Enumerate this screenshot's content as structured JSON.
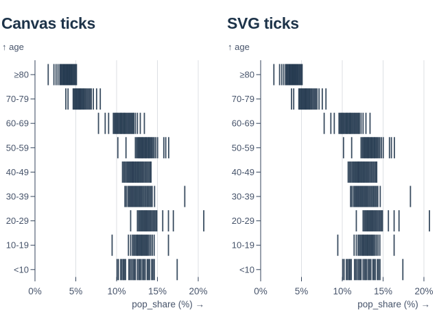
{
  "colors": {
    "tick": "#24384f",
    "title": "#1d3349",
    "label": "#46536a",
    "axis": "#31425a",
    "grid": "#dcdfe3"
  },
  "chart_data": {
    "type": "tick-strip",
    "note": "Two side-by-side panels rendering the identical tick dataset (canvas vs SVG renderer comparison)",
    "panels": [
      {
        "title": "Canvas ticks"
      },
      {
        "title": "SVG ticks"
      }
    ],
    "ylabel": "↑ age",
    "xlabel": "pop_share (%) →",
    "x_ticks_pct": [
      0,
      5,
      10,
      15,
      20
    ],
    "x_tick_labels": [
      "0%",
      "5%",
      "10%",
      "15%",
      "20%"
    ],
    "xlim": [
      0,
      21
    ],
    "grid": "vertical light-gray gridlines at 5% steps",
    "categories": [
      "≥80",
      "70-79",
      "60-69",
      "50-59",
      "40-49",
      "30-39",
      "20-29",
      "10-19",
      "<10"
    ],
    "series": [
      {
        "age": "≥80",
        "pop_share_ticks": [
          1.62,
          2.32,
          2.58,
          2.82,
          3.05,
          3.12,
          3.24,
          3.3,
          3.42,
          3.5,
          3.55,
          3.63,
          3.72,
          3.8,
          3.88,
          3.95,
          4.02,
          4.1,
          4.18,
          4.25,
          4.33,
          4.42,
          4.5,
          4.58,
          4.68,
          4.78,
          4.88,
          5.0,
          5.08
        ]
      },
      {
        "age": "70-79",
        "pop_share_ticks": [
          3.78,
          4.05,
          4.68,
          4.78,
          4.9,
          5.0,
          5.08,
          5.18,
          5.28,
          5.38,
          5.48,
          5.55,
          5.65,
          5.75,
          5.85,
          5.95,
          6.05,
          6.18,
          6.3,
          6.45,
          6.6,
          6.75,
          6.9,
          7.15,
          7.55,
          8.0
        ]
      },
      {
        "age": "60-69",
        "pop_share_ticks": [
          7.78,
          8.6,
          9.02,
          9.6,
          9.72,
          9.85,
          9.95,
          10.05,
          10.15,
          10.28,
          10.4,
          10.5,
          10.6,
          10.7,
          10.82,
          10.92,
          11.02,
          11.12,
          11.25,
          11.38,
          11.5,
          11.62,
          11.75,
          11.88,
          12.0,
          12.1,
          12.3,
          12.55,
          12.9,
          13.4
        ]
      },
      {
        "age": "50-59",
        "pop_share_ticks": [
          10.15,
          11.15,
          12.3,
          12.45,
          12.58,
          12.7,
          12.8,
          12.9,
          13.0,
          13.1,
          13.2,
          13.3,
          13.42,
          13.52,
          13.62,
          13.72,
          13.85,
          13.95,
          14.05,
          14.18,
          14.3,
          14.45,
          14.6,
          14.8,
          15.02,
          15.78,
          16.02,
          16.38
        ]
      },
      {
        "age": "40-49",
        "pop_share_ticks": [
          10.72,
          10.88,
          11.02,
          11.18,
          11.32,
          11.45,
          11.58,
          11.7,
          11.82,
          11.92,
          12.02,
          12.12,
          12.25,
          12.35,
          12.48,
          12.58,
          12.7,
          12.82,
          12.95,
          13.08,
          13.2,
          13.35,
          13.5,
          13.65,
          13.8,
          13.95,
          14.1,
          14.22
        ]
      },
      {
        "age": "30-39",
        "pop_share_ticks": [
          11.02,
          11.18,
          11.38,
          11.52,
          11.65,
          11.78,
          11.9,
          12.02,
          12.15,
          12.28,
          12.4,
          12.52,
          12.65,
          12.78,
          12.9,
          13.02,
          13.15,
          13.3,
          13.45,
          13.6,
          13.75,
          13.9,
          14.05,
          14.2,
          14.35,
          14.65,
          18.35
        ]
      },
      {
        "age": "20-29",
        "pop_share_ticks": [
          11.72,
          12.55,
          12.7,
          12.85,
          12.98,
          13.1,
          13.22,
          13.35,
          13.48,
          13.58,
          13.7,
          13.82,
          13.95,
          14.08,
          14.2,
          14.35,
          14.5,
          14.65,
          14.8,
          14.92,
          15.65,
          16.35,
          16.95,
          20.68
        ]
      },
      {
        "age": "10-19",
        "pop_share_ticks": [
          9.45,
          11.45,
          11.72,
          11.95,
          12.1,
          12.25,
          12.4,
          12.52,
          12.62,
          12.75,
          12.88,
          13.0,
          13.1,
          13.22,
          13.35,
          13.48,
          13.6,
          13.72,
          13.85,
          14.0,
          14.18,
          14.38,
          14.6,
          16.35
        ]
      },
      {
        "age": "<10",
        "pop_share_ticks": [
          10.05,
          10.22,
          10.5,
          10.65,
          10.82,
          10.95,
          11.1,
          11.5,
          11.65,
          11.82,
          12.0,
          12.15,
          12.3,
          12.55,
          12.72,
          12.85,
          13.0,
          13.2,
          13.35,
          13.5,
          13.75,
          13.9,
          14.05,
          14.3,
          14.45,
          14.62,
          17.42
        ]
      }
    ]
  }
}
